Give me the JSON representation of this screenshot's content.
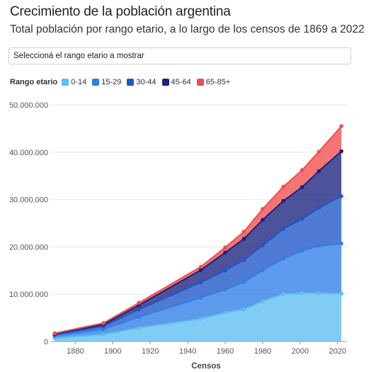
{
  "header": {
    "title": "Crecimiento de la población argentina",
    "subtitle": "Total población por rango etario, a lo largo de los censos de 1869 a 2022"
  },
  "selector": {
    "label": "Seleccioná el rango etario a mostrar"
  },
  "legend": {
    "title": "Rango etario"
  },
  "chart_data": {
    "type": "area",
    "stacked": true,
    "x": [
      1869,
      1895,
      1914,
      1947,
      1960,
      1970,
      1980,
      1991,
      2001,
      2010,
      2022
    ],
    "series": [
      {
        "name": "0-14",
        "color": "#5cbef0",
        "values": [
          700000,
          1500000,
          2900000,
          4800000,
          6100000,
          6800000,
          8500000,
          10000000,
          10200000,
          10200000,
          10100000
        ]
      },
      {
        "name": "15-29",
        "color": "#2f7ee6",
        "values": [
          500000,
          1100000,
          2300000,
          4500000,
          4900000,
          5800000,
          6600000,
          7500000,
          9000000,
          10000000,
          10600000
        ]
      },
      {
        "name": "30-44",
        "color": "#1f56c8",
        "values": [
          250000,
          650000,
          1600000,
          3200000,
          4000000,
          4600000,
          5200000,
          6300000,
          6700000,
          8000000,
          10000000
        ]
      },
      {
        "name": "45-64",
        "color": "#1a237e",
        "values": [
          150000,
          350000,
          900000,
          2600000,
          3800000,
          4500000,
          5400000,
          5900000,
          6700000,
          7800000,
          9500000
        ]
      },
      {
        "name": "65-85+",
        "color": "#f04e50",
        "values": [
          150000,
          300000,
          500000,
          700000,
          1100000,
          1500000,
          2300000,
          3000000,
          3600000,
          4100000,
          5300000
        ]
      }
    ],
    "xlabel": "Censos",
    "xticks": [
      1880,
      1900,
      1920,
      1940,
      1960,
      1980,
      2000,
      2020
    ],
    "ylim": [
      0,
      50000000
    ],
    "yticks": [
      0,
      10000000,
      20000000,
      30000000,
      40000000,
      50000000
    ],
    "ytick_labels": [
      "0",
      "10.000.000",
      "20.000.000",
      "30.000.000",
      "40.000.000",
      "50.000.000"
    ],
    "xlim": [
      1867,
      2025
    ],
    "grid": "horizontal",
    "legend_position": "top-left"
  }
}
